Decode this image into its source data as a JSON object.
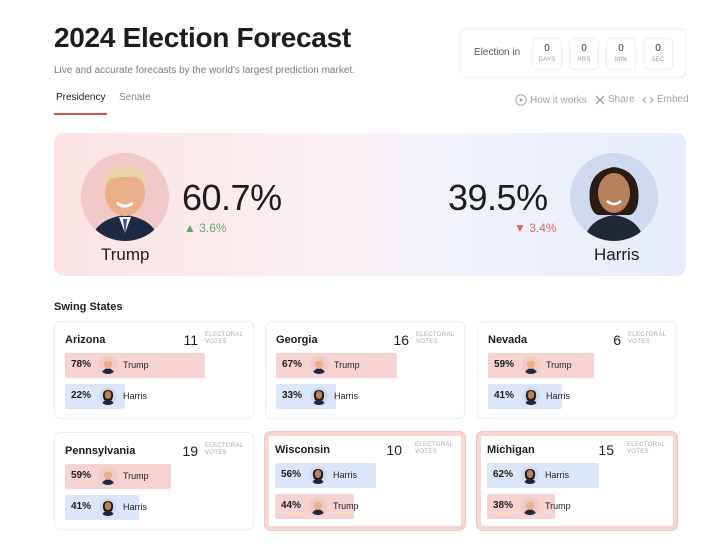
{
  "header": {
    "title": "2024 Election Forecast",
    "subtitle": "Live and accurate forecasts by the world's largest prediction market."
  },
  "countdown": {
    "label": "Election in",
    "units": [
      {
        "value": "0",
        "unit": "DAYS"
      },
      {
        "value": "0",
        "unit": "HRS"
      },
      {
        "value": "0",
        "unit": "MIN"
      },
      {
        "value": "0",
        "unit": "SEC"
      }
    ]
  },
  "tabs": [
    {
      "label": "Presidency",
      "active": true
    },
    {
      "label": "Senate",
      "active": false
    }
  ],
  "actions": {
    "how": "How it works",
    "share": "Share",
    "embed": "Embed"
  },
  "hero": {
    "left": {
      "name": "Trump",
      "pct": "60.7%",
      "change": "3.6%",
      "direction": "up"
    },
    "right": {
      "name": "Harris",
      "pct": "39.5%",
      "change": "3.4%",
      "direction": "down"
    }
  },
  "swing": {
    "title": "Swing States",
    "ev_label_1": "ELECTORAL",
    "ev_label_2": "VOTES",
    "states": [
      {
        "name": "Arizona",
        "votes": "11",
        "rows": [
          {
            "pct": "78%",
            "pct_value": 78,
            "cand": "Trump",
            "color": "red"
          },
          {
            "pct": "22%",
            "pct_value": 22,
            "cand": "Harris",
            "color": "blue"
          }
        ]
      },
      {
        "name": "Georgia",
        "votes": "16",
        "rows": [
          {
            "pct": "67%",
            "pct_value": 67,
            "cand": "Trump",
            "color": "red"
          },
          {
            "pct": "33%",
            "pct_value": 33,
            "cand": "Harris",
            "color": "blue"
          }
        ]
      },
      {
        "name": "Nevada",
        "votes": "6",
        "rows": [
          {
            "pct": "59%",
            "pct_value": 59,
            "cand": "Trump",
            "color": "red"
          },
          {
            "pct": "41%",
            "pct_value": 41,
            "cand": "Harris",
            "color": "blue"
          }
        ]
      },
      {
        "name": "Pennsylvania",
        "votes": "19",
        "rows": [
          {
            "pct": "59%",
            "pct_value": 59,
            "cand": "Trump",
            "color": "red"
          },
          {
            "pct": "41%",
            "pct_value": 41,
            "cand": "Harris",
            "color": "blue"
          }
        ]
      },
      {
        "name": "Wisconsin",
        "votes": "10",
        "highlight": true,
        "rows": [
          {
            "pct": "56%",
            "pct_value": 56,
            "cand": "Harris",
            "color": "blue"
          },
          {
            "pct": "44%",
            "pct_value": 44,
            "cand": "Trump",
            "color": "red"
          }
        ]
      },
      {
        "name": "Michigan",
        "votes": "15",
        "highlight": true,
        "rows": [
          {
            "pct": "62%",
            "pct_value": 62,
            "cand": "Harris",
            "color": "blue"
          },
          {
            "pct": "38%",
            "pct_value": 38,
            "cand": "Trump",
            "color": "red"
          }
        ]
      }
    ]
  },
  "colors": {
    "accent": "#d9534f",
    "trump_bar": "#f6d3d1",
    "harris_bar": "#dce6fb",
    "up": "#6aa36a",
    "down": "#d36b6b"
  }
}
